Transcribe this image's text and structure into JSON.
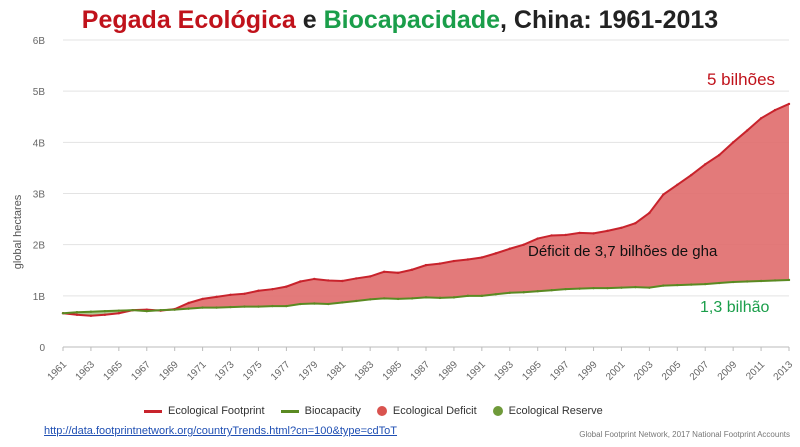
{
  "title": {
    "part1": "Pegada Ecológica",
    "part2": " e ",
    "part3": "Biocapacidade",
    "part4": ", China: 1961-2013"
  },
  "colors": {
    "footprint": "#c8232c",
    "biocapacity": "#5a8a22",
    "deficit_fill": "#e06b6b",
    "reserve": "#6f9a3a",
    "title_red": "#c0121b",
    "title_green": "#1a9e4a"
  },
  "annotations": {
    "footprint_end": "5 bilhões",
    "deficit": "Déficit  de 3,7 bilhões de gha",
    "biocap_end": "1,3 bilhão"
  },
  "link": "http://data.footprintnetwork.org/countryTrends.html?cn=100&type=cdToT",
  "credit": "Global Footprint Network, 2017 National Footprint Accounts",
  "chart_data": {
    "type": "area",
    "ylabel": "global hectares",
    "ylim": [
      0,
      6
    ],
    "yticks": [
      "0",
      "1B",
      "2B",
      "3B",
      "4B",
      "5B",
      "6B"
    ],
    "xticks": [
      "1961",
      "1963",
      "1965",
      "1967",
      "1969",
      "1971",
      "1973",
      "1975",
      "1977",
      "1979",
      "1981",
      "1983",
      "1985",
      "1987",
      "1989",
      "1991",
      "1993",
      "1995",
      "1997",
      "1999",
      "2001",
      "2003",
      "2005",
      "2007",
      "2009",
      "2011",
      "2013"
    ],
    "x": [
      1961,
      1962,
      1963,
      1964,
      1965,
      1966,
      1967,
      1968,
      1969,
      1970,
      1971,
      1972,
      1973,
      1974,
      1975,
      1976,
      1977,
      1978,
      1979,
      1980,
      1981,
      1982,
      1983,
      1984,
      1985,
      1986,
      1987,
      1988,
      1989,
      1990,
      1991,
      1992,
      1993,
      1994,
      1995,
      1996,
      1997,
      1998,
      1999,
      2000,
      2001,
      2002,
      2003,
      2004,
      2005,
      2006,
      2007,
      2008,
      2009,
      2010,
      2011,
      2012,
      2013
    ],
    "series": [
      {
        "name": "Ecological Footprint",
        "values": [
          0.66,
          0.63,
          0.61,
          0.63,
          0.66,
          0.72,
          0.73,
          0.71,
          0.74,
          0.86,
          0.94,
          0.98,
          1.02,
          1.04,
          1.1,
          1.13,
          1.18,
          1.28,
          1.33,
          1.3,
          1.29,
          1.34,
          1.38,
          1.47,
          1.45,
          1.51,
          1.6,
          1.63,
          1.68,
          1.71,
          1.75,
          1.83,
          1.92,
          2.0,
          2.12,
          2.18,
          2.19,
          2.23,
          2.22,
          2.27,
          2.33,
          2.42,
          2.62,
          2.98,
          3.17,
          3.36,
          3.57,
          3.75,
          4.0,
          4.23,
          4.47,
          4.63,
          4.75
        ]
      },
      {
        "name": "Biocapacity",
        "values": [
          0.66,
          0.68,
          0.69,
          0.7,
          0.71,
          0.72,
          0.7,
          0.72,
          0.73,
          0.75,
          0.77,
          0.77,
          0.78,
          0.79,
          0.79,
          0.8,
          0.8,
          0.84,
          0.85,
          0.84,
          0.87,
          0.9,
          0.93,
          0.95,
          0.94,
          0.95,
          0.97,
          0.96,
          0.97,
          1.0,
          1.0,
          1.03,
          1.06,
          1.07,
          1.09,
          1.11,
          1.13,
          1.14,
          1.15,
          1.15,
          1.16,
          1.17,
          1.16,
          1.2,
          1.21,
          1.22,
          1.23,
          1.25,
          1.27,
          1.28,
          1.29,
          1.3,
          1.31
        ]
      }
    ],
    "legend": [
      "Ecological Footprint",
      "Biocapacity",
      "Ecological Deficit",
      "Ecological Reserve"
    ],
    "legend_position": "bottom",
    "grid": true
  }
}
